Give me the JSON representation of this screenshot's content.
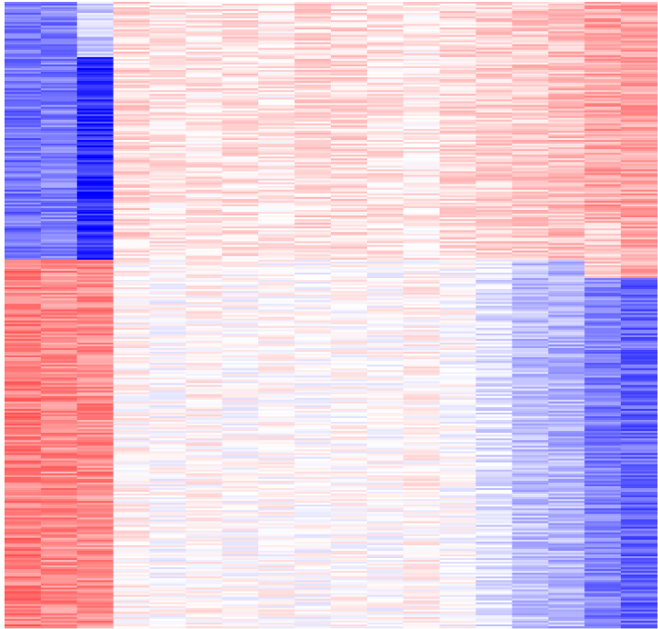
{
  "chart_data": {
    "type": "heatmap",
    "title": "",
    "xlabel": "",
    "ylabel": "",
    "colormap": {
      "low": "#0000ff",
      "mid": "#ffffff",
      "high": "#ff0000"
    },
    "value_range": [
      -1,
      1
    ],
    "grid": false,
    "legend": "none",
    "n_columns": 18,
    "n_rows": 34,
    "columns": [
      {
        "blocks": [
          {
            "rows": [
              0,
              14
            ],
            "mean": -0.55
          },
          {
            "rows": [
              14,
              34
            ],
            "mean": 0.5
          }
        ]
      },
      {
        "blocks": [
          {
            "rows": [
              0,
              14
            ],
            "mean": -0.5
          },
          {
            "rows": [
              14,
              34
            ],
            "mean": 0.45
          }
        ]
      },
      {
        "blocks": [
          {
            "rows": [
              0,
              3
            ],
            "mean": -0.2
          },
          {
            "rows": [
              3,
              14
            ],
            "mean": -0.8
          },
          {
            "rows": [
              14,
              34
            ],
            "mean": 0.45
          }
        ]
      },
      {
        "blocks": [
          {
            "rows": [
              0,
              14
            ],
            "mean": 0.15
          },
          {
            "rows": [
              14,
              34
            ],
            "mean": 0.05
          }
        ]
      },
      {
        "blocks": [
          {
            "rows": [
              0,
              14
            ],
            "mean": 0.1
          },
          {
            "rows": [
              14,
              34
            ],
            "mean": 0.0
          }
        ]
      },
      {
        "blocks": [
          {
            "rows": [
              0,
              14
            ],
            "mean": 0.1
          },
          {
            "rows": [
              14,
              34
            ],
            "mean": 0.05
          }
        ]
      },
      {
        "blocks": [
          {
            "rows": [
              0,
              14
            ],
            "mean": 0.12
          },
          {
            "rows": [
              14,
              34
            ],
            "mean": 0.0
          }
        ]
      },
      {
        "blocks": [
          {
            "rows": [
              0,
              14
            ],
            "mean": 0.08
          },
          {
            "rows": [
              14,
              34
            ],
            "mean": 0.02
          }
        ]
      },
      {
        "blocks": [
          {
            "rows": [
              0,
              14
            ],
            "mean": 0.15
          },
          {
            "rows": [
              14,
              34
            ],
            "mean": 0.0
          }
        ]
      },
      {
        "blocks": [
          {
            "rows": [
              0,
              14
            ],
            "mean": 0.15
          },
          {
            "rows": [
              14,
              34
            ],
            "mean": 0.02
          }
        ]
      },
      {
        "blocks": [
          {
            "rows": [
              0,
              14
            ],
            "mean": 0.1
          },
          {
            "rows": [
              14,
              34
            ],
            "mean": 0.0
          }
        ]
      },
      {
        "blocks": [
          {
            "rows": [
              0,
              14
            ],
            "mean": 0.08
          },
          {
            "rows": [
              14,
              34
            ],
            "mean": 0.05
          }
        ]
      },
      {
        "blocks": [
          {
            "rows": [
              0,
              14
            ],
            "mean": 0.15
          },
          {
            "rows": [
              14,
              34
            ],
            "mean": 0.0
          }
        ]
      },
      {
        "blocks": [
          {
            "rows": [
              0,
              14
            ],
            "mean": 0.18
          },
          {
            "rows": [
              14,
              34
            ],
            "mean": -0.12
          }
        ]
      },
      {
        "blocks": [
          {
            "rows": [
              0,
              14
            ],
            "mean": 0.2
          },
          {
            "rows": [
              14,
              34
            ],
            "mean": -0.25
          }
        ]
      },
      {
        "blocks": [
          {
            "rows": [
              0,
              14
            ],
            "mean": 0.25
          },
          {
            "rows": [
              14,
              34
            ],
            "mean": -0.3
          }
        ]
      },
      {
        "blocks": [
          {
            "rows": [
              0,
              12
            ],
            "mean": 0.35
          },
          {
            "rows": [
              12,
              15
            ],
            "mean": 0.2
          },
          {
            "rows": [
              15,
              34
            ],
            "mean": -0.5
          }
        ]
      },
      {
        "blocks": [
          {
            "rows": [
              0,
              15
            ],
            "mean": 0.35
          },
          {
            "rows": [
              15,
              34
            ],
            "mean": -0.6
          }
        ]
      }
    ]
  }
}
